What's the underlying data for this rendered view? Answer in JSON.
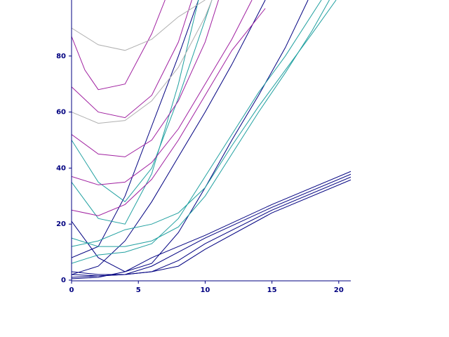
{
  "chart_data": {
    "type": "line",
    "xlim": [
      0,
      20.9
    ],
    "ylim": [
      0,
      100
    ],
    "xticks": [
      0,
      5,
      10,
      15,
      20
    ],
    "yticks": [
      0,
      20,
      40,
      60,
      80
    ],
    "axis_color": "#000080",
    "series": [
      {
        "color": "#000080",
        "x": [
          0,
          2,
          4,
          6,
          8,
          10,
          15,
          21
        ],
        "values": [
          0.5,
          1,
          3,
          8,
          12,
          16,
          27,
          39
        ]
      },
      {
        "color": "#000080",
        "x": [
          0,
          2,
          4,
          6,
          8,
          10,
          15,
          21
        ],
        "values": [
          1,
          1.5,
          2,
          5,
          10,
          15,
          26,
          38
        ]
      },
      {
        "color": "#000080",
        "x": [
          0,
          2,
          4,
          6,
          8,
          10,
          15,
          21
        ],
        "values": [
          2,
          1.5,
          2,
          3,
          7,
          13,
          25,
          37
        ]
      },
      {
        "color": "#000080",
        "x": [
          0,
          2,
          4,
          6,
          8,
          10,
          15,
          21
        ],
        "values": [
          3,
          2,
          2,
          3,
          5,
          11,
          24,
          36
        ]
      },
      {
        "color": "#000080",
        "x": [
          0,
          2,
          4,
          6,
          8,
          10,
          12,
          14.5
        ],
        "values": [
          2,
          5,
          14,
          28,
          44,
          60,
          77,
          100
        ]
      },
      {
        "color": "#000080",
        "x": [
          0,
          2,
          4,
          6,
          8,
          10,
          12,
          14,
          16,
          17.7
        ],
        "values": [
          21,
          8,
          3,
          6,
          17,
          33,
          50,
          66,
          83,
          100
        ]
      },
      {
        "color": "#000080",
        "x": [
          0,
          2,
          4,
          6,
          8,
          9.5
        ],
        "values": [
          8,
          12,
          30,
          55,
          80,
          100
        ]
      },
      {
        "color": "#20a0a0",
        "x": [
          0,
          2,
          4,
          6,
          8,
          10,
          12,
          14,
          16,
          18,
          19.8
        ],
        "values": [
          12,
          14,
          18,
          20,
          24,
          33,
          48,
          62,
          75,
          88,
          100
        ]
      },
      {
        "color": "#20a0a0",
        "x": [
          0,
          2,
          4,
          6,
          8,
          10,
          12,
          14,
          16,
          18,
          19.3
        ],
        "values": [
          15,
          12,
          12,
          14,
          19,
          30,
          45,
          60,
          74,
          89,
          100
        ]
      },
      {
        "color": "#20a0a0",
        "x": [
          0,
          2,
          4,
          6,
          8,
          10,
          12,
          14,
          16,
          18.7
        ],
        "values": [
          6,
          9,
          10,
          13,
          22,
          37,
          52,
          67,
          80,
          100
        ]
      },
      {
        "color": "#20a0a0",
        "x": [
          0,
          2,
          4,
          6,
          8,
          10.5
        ],
        "values": [
          50,
          35,
          28,
          40,
          65,
          100
        ]
      },
      {
        "color": "#20a0a0",
        "x": [
          0,
          2,
          4,
          6,
          8,
          9.5
        ],
        "values": [
          35,
          22,
          20,
          38,
          70,
          100
        ]
      },
      {
        "color": "#a020a0",
        "x": [
          0,
          2,
          4,
          6,
          8,
          10,
          12,
          14.5
        ],
        "values": [
          25,
          23,
          27,
          36,
          50,
          66,
          82,
          97
        ]
      },
      {
        "color": "#a020a0",
        "x": [
          0,
          2,
          4,
          6,
          8,
          10,
          12,
          13.5
        ],
        "values": [
          37,
          34,
          35,
          42,
          54,
          70,
          86,
          100
        ]
      },
      {
        "color": "#a020a0",
        "x": [
          0,
          2,
          4,
          6,
          8,
          10,
          11
        ],
        "values": [
          52,
          45,
          44,
          50,
          64,
          85,
          100
        ]
      },
      {
        "color": "#a020a0",
        "x": [
          0,
          2,
          4,
          6,
          8,
          9
        ],
        "values": [
          69,
          60,
          58,
          66,
          85,
          100
        ]
      },
      {
        "color": "#a020a0",
        "x": [
          0,
          1,
          2,
          4,
          6,
          7
        ],
        "values": [
          87,
          75,
          68,
          70,
          88,
          100
        ]
      },
      {
        "color": "#b0b0b0",
        "x": [
          0,
          2,
          4,
          6,
          8,
          10
        ],
        "values": [
          90,
          84,
          82,
          86,
          94,
          100
        ]
      },
      {
        "color": "#b0b0b0",
        "x": [
          0,
          2,
          4,
          6,
          8,
          10,
          10.5
        ],
        "values": [
          60,
          56,
          57,
          64,
          76,
          94,
          100
        ]
      }
    ]
  }
}
